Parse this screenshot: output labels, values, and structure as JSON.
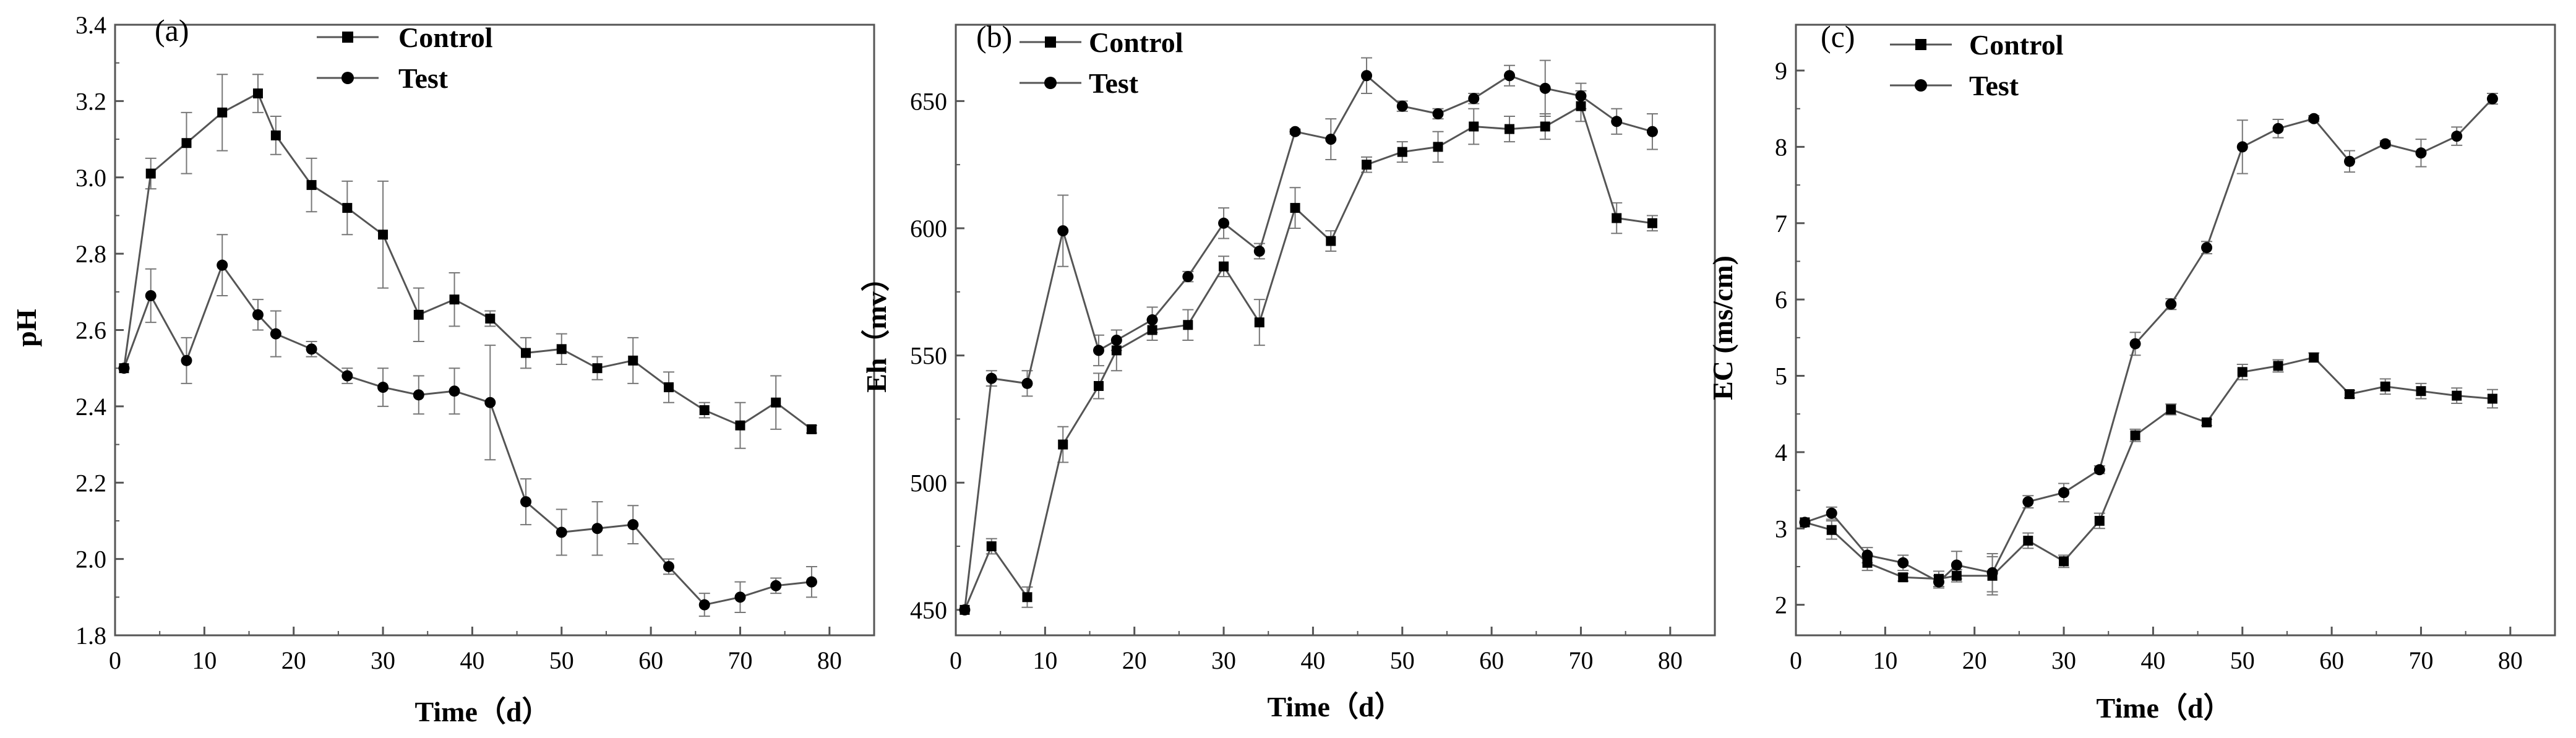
{
  "chart_data": [
    {
      "type": "line",
      "panel_label": "(a)",
      "xlabel": "Time（d）",
      "ylabel": "pH",
      "xlim": [
        0,
        85
      ],
      "ylim": [
        1.8,
        3.4
      ],
      "xticks": [
        0,
        10,
        20,
        30,
        40,
        50,
        60,
        70,
        80
      ],
      "yticks": [
        1.8,
        2.0,
        2.2,
        2.4,
        2.6,
        2.8,
        3.0,
        3.2,
        3.4
      ],
      "ytick_labels": [
        "1.8",
        "2.0",
        "2.2",
        "2.4",
        "2.6",
        "2.8",
        "3.0",
        "3.2",
        "3.4"
      ],
      "legend_position": "top-center",
      "x": [
        1,
        4,
        8,
        12,
        16,
        18,
        22,
        26,
        30,
        34,
        38,
        42,
        46,
        50,
        54,
        58,
        62,
        66,
        70,
        74,
        78
      ],
      "series": [
        {
          "name": "Control",
          "marker": "square",
          "values": [
            2.5,
            3.01,
            3.09,
            3.17,
            3.22,
            3.11,
            2.98,
            2.92,
            2.85,
            2.64,
            2.68,
            2.63,
            2.54,
            2.55,
            2.5,
            2.52,
            2.45,
            2.39,
            2.35,
            2.41,
            2.34
          ],
          "errors": [
            0,
            0.04,
            0.08,
            0.1,
            0.05,
            0.05,
            0.07,
            0.07,
            0.14,
            0.07,
            0.07,
            0.02,
            0.04,
            0.04,
            0.03,
            0.06,
            0.04,
            0.02,
            0.06,
            0.07,
            0.01
          ]
        },
        {
          "name": "Test",
          "marker": "circle",
          "values": [
            2.5,
            2.69,
            2.52,
            2.77,
            2.64,
            2.59,
            2.55,
            2.48,
            2.45,
            2.43,
            2.44,
            2.41,
            2.15,
            2.07,
            2.08,
            2.09,
            1.98,
            1.88,
            1.9,
            1.93,
            1.94
          ],
          "errors": [
            0,
            0.07,
            0.06,
            0.08,
            0.04,
            0.06,
            0.02,
            0.02,
            0.05,
            0.05,
            0.06,
            0.15,
            0.06,
            0.06,
            0.07,
            0.05,
            0.02,
            0.03,
            0.04,
            0.02,
            0.04
          ]
        }
      ]
    },
    {
      "type": "line",
      "panel_label": "(b)",
      "xlabel": "Time（d）",
      "ylabel": "Eh（mv）",
      "xlim": [
        0,
        85
      ],
      "ylim": [
        440,
        680
      ],
      "xticks": [
        0,
        10,
        20,
        30,
        40,
        50,
        60,
        70,
        80
      ],
      "yticks": [
        450,
        500,
        550,
        600,
        650
      ],
      "ytick_labels": [
        "450",
        "500",
        "550",
        "600",
        "650"
      ],
      "legend_position": "top-left",
      "x": [
        1,
        4,
        8,
        12,
        16,
        18,
        22,
        26,
        30,
        34,
        38,
        42,
        46,
        50,
        54,
        58,
        62,
        66,
        70,
        74,
        78
      ],
      "series": [
        {
          "name": "Control",
          "marker": "square",
          "values": [
            450,
            475,
            455,
            515,
            538,
            552,
            560,
            562,
            585,
            563,
            608,
            595,
            625,
            630,
            632,
            640,
            639,
            640,
            648,
            604,
            602
          ],
          "errors": [
            0,
            3,
            4,
            7,
            5,
            8,
            4,
            6,
            4,
            9,
            8,
            4,
            3,
            4,
            6,
            7,
            5,
            5,
            6,
            6,
            3
          ]
        },
        {
          "name": "Test",
          "marker": "circle",
          "values": [
            450,
            541,
            539,
            599,
            552,
            556,
            564,
            581,
            602,
            591,
            638,
            635,
            660,
            648,
            645,
            651,
            660,
            655,
            652,
            642,
            638
          ],
          "errors": [
            0,
            3,
            5,
            14,
            6,
            4,
            5,
            2,
            6,
            3,
            1,
            8,
            7,
            2,
            2,
            2,
            4,
            11,
            5,
            5,
            7
          ]
        }
      ]
    },
    {
      "type": "line",
      "panel_label": "(c)",
      "xlabel": "Time（d）",
      "ylabel": "EC (ms/cm)",
      "xlim": [
        0,
        85
      ],
      "ylim": [
        1.6,
        9.6
      ],
      "xticks": [
        0,
        10,
        20,
        30,
        40,
        50,
        60,
        70,
        80
      ],
      "yticks": [
        2,
        3,
        4,
        5,
        6,
        7,
        8,
        9
      ],
      "ytick_labels": [
        "2",
        "3",
        "4",
        "5",
        "6",
        "7",
        "8",
        "9"
      ],
      "legend_position": "top-left",
      "x": [
        1,
        4,
        8,
        12,
        16,
        18,
        22,
        26,
        30,
        34,
        38,
        42,
        46,
        50,
        54,
        58,
        62,
        66,
        70,
        74,
        78
      ],
      "series": [
        {
          "name": "Control",
          "marker": "square",
          "values": [
            3.08,
            2.98,
            2.55,
            2.36,
            2.34,
            2.38,
            2.38,
            2.84,
            2.57,
            3.1,
            4.22,
            4.56,
            4.39,
            5.05,
            5.13,
            5.24,
            4.76,
            4.86,
            4.8,
            4.74,
            4.7
          ],
          "errors": [
            0,
            0.12,
            0.1,
            0.05,
            0.1,
            0.08,
            0.25,
            0.1,
            0.08,
            0.1,
            0.08,
            0.07,
            0.04,
            0.1,
            0.08,
            0.06,
            0.05,
            0.1,
            0.1,
            0.1,
            0.12
          ]
        },
        {
          "name": "Test",
          "marker": "circle",
          "values": [
            3.08,
            3.2,
            2.65,
            2.55,
            2.3,
            2.52,
            2.42,
            3.35,
            3.47,
            3.77,
            5.42,
            5.94,
            6.68,
            8.0,
            8.24,
            8.37,
            7.81,
            8.04,
            7.92,
            8.14,
            8.63
          ],
          "errors": [
            0,
            0.08,
            0.1,
            0.1,
            0.08,
            0.18,
            0.25,
            0.08,
            0.12,
            0.05,
            0.15,
            0.07,
            0.08,
            0.35,
            0.12,
            0.04,
            0.14,
            0.04,
            0.18,
            0.12,
            0.07
          ]
        }
      ]
    }
  ]
}
